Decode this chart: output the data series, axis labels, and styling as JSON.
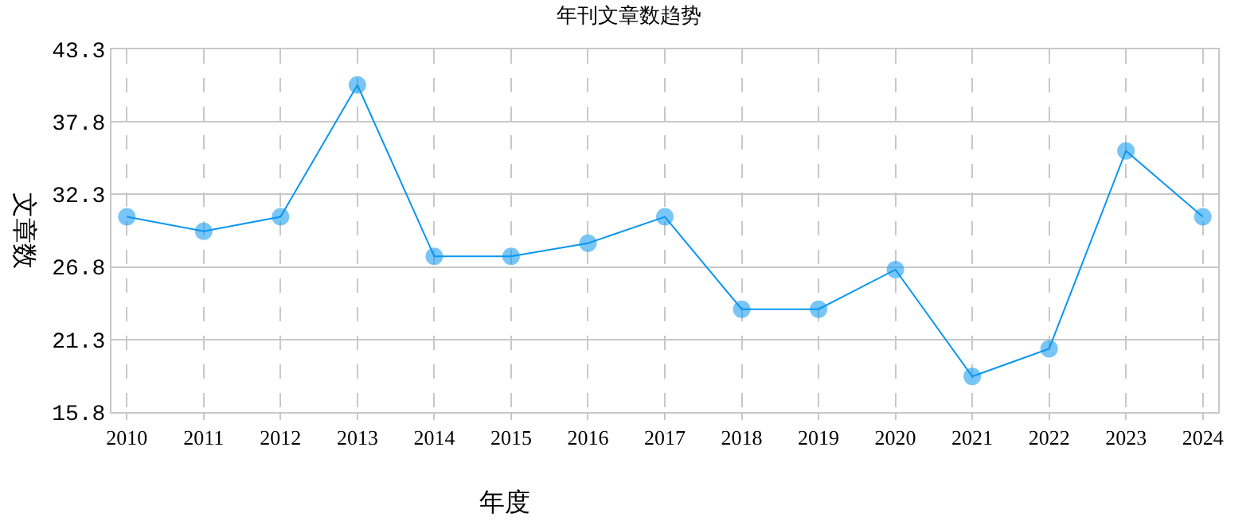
{
  "chart_data": {
    "type": "line",
    "title": "年刊文章数趋势",
    "xlabel": "年度",
    "ylabel": "文章数",
    "categories": [
      "2010",
      "2011",
      "2012",
      "2013",
      "2014",
      "2015",
      "2016",
      "2017",
      "2018",
      "2019",
      "2020",
      "2021",
      "2022",
      "2023",
      "2024"
    ],
    "series": [
      {
        "color": "#0a96f0",
        "values": [
          30.6,
          29.5,
          30.6,
          40.6,
          27.6,
          27.6,
          28.6,
          30.6,
          23.6,
          23.6,
          26.6,
          18.5,
          20.6,
          35.6,
          30.6
        ]
      }
    ],
    "ylim": [
      15.8,
      43.3
    ],
    "yticks": [
      15.8,
      21.3,
      26.8,
      32.3,
      37.8,
      43.3
    ],
    "grid": true,
    "marker": "circle",
    "line_style": "solid"
  }
}
